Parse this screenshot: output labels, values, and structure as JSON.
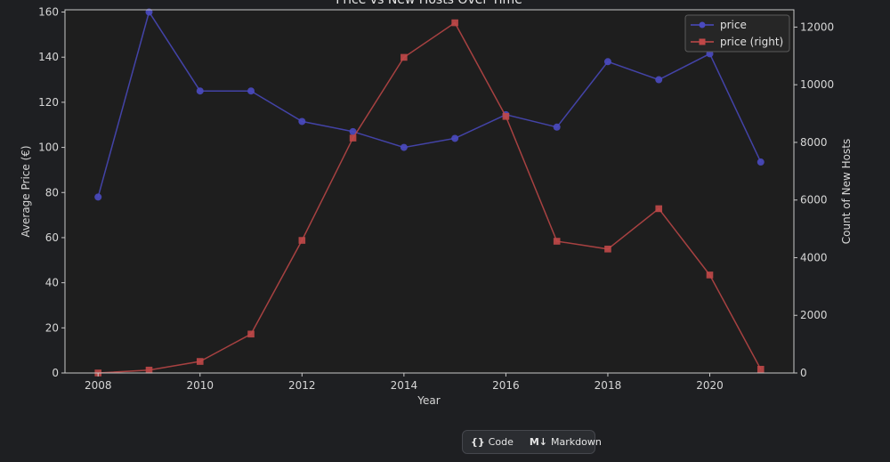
{
  "chart_data": {
    "type": "line",
    "title": "Price vs New Hosts Over Time",
    "xlabel": "Year",
    "ylabel": "Average Price (€)",
    "y2label": "Count of New Hosts",
    "x": [
      2008,
      2009,
      2010,
      2011,
      2012,
      2013,
      2014,
      2015,
      2016,
      2017,
      2018,
      2019,
      2020,
      2021
    ],
    "xlim": [
      2007.35,
      2021.65
    ],
    "xticks": [
      2008,
      2010,
      2012,
      2014,
      2016,
      2018,
      2020
    ],
    "ylim": [
      0,
      161
    ],
    "yticks": [
      0,
      20,
      40,
      60,
      80,
      100,
      120,
      140,
      160
    ],
    "y2lim": [
      0,
      12600
    ],
    "y2ticks": [
      0,
      2000,
      4000,
      6000,
      8000,
      10000,
      12000
    ],
    "legend_position": "top-right",
    "series": [
      {
        "name": "price",
        "axis": "left",
        "marker": "circle",
        "color": "#4a4ac0",
        "values": [
          78,
          160,
          125,
          125,
          111.5,
          107,
          100,
          104,
          114.5,
          109,
          138,
          130,
          141.5,
          93.5
        ]
      },
      {
        "name": "price (right)",
        "axis": "right",
        "marker": "square",
        "color": "#c04848",
        "values": [
          0,
          100,
          400,
          1350,
          4600,
          8150,
          10950,
          12150,
          8900,
          4570,
          4300,
          5700,
          3400,
          130
        ]
      }
    ]
  },
  "toolbar": {
    "code_icon": "{}",
    "code_label": "Code",
    "markdown_icon": "M↓",
    "markdown_label": "Markdown"
  }
}
